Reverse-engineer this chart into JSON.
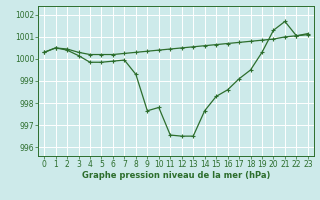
{
  "xlabel": "Graphe pression niveau de la mer (hPa)",
  "bg_color": "#cdeaea",
  "grid_color": "#b8dada",
  "line_color": "#2d6e2d",
  "marker_color": "#2d6e2d",
  "x_ticks": [
    0,
    1,
    2,
    3,
    4,
    5,
    6,
    7,
    8,
    9,
    10,
    11,
    12,
    13,
    14,
    15,
    16,
    17,
    18,
    19,
    20,
    21,
    22,
    23
  ],
  "y_ticks": [
    996,
    997,
    998,
    999,
    1000,
    1001,
    1002
  ],
  "ylim": [
    995.6,
    1002.4
  ],
  "xlim": [
    -0.5,
    23.5
  ],
  "series1": [
    1000.3,
    1000.5,
    1000.45,
    1000.3,
    1000.2,
    1000.2,
    1000.2,
    1000.25,
    1000.3,
    1000.35,
    1000.4,
    1000.45,
    1000.5,
    1000.55,
    1000.6,
    1000.65,
    1000.7,
    1000.75,
    1000.8,
    1000.85,
    1000.9,
    1001.0,
    1001.05,
    1001.1
  ],
  "series2": [
    1000.3,
    1000.5,
    1000.4,
    1000.15,
    999.85,
    999.85,
    999.9,
    999.95,
    999.3,
    997.65,
    997.8,
    996.55,
    996.5,
    996.5,
    997.65,
    998.3,
    998.6,
    999.1,
    999.5,
    1000.3,
    1001.3,
    1001.7,
    1001.05,
    1001.15
  ]
}
